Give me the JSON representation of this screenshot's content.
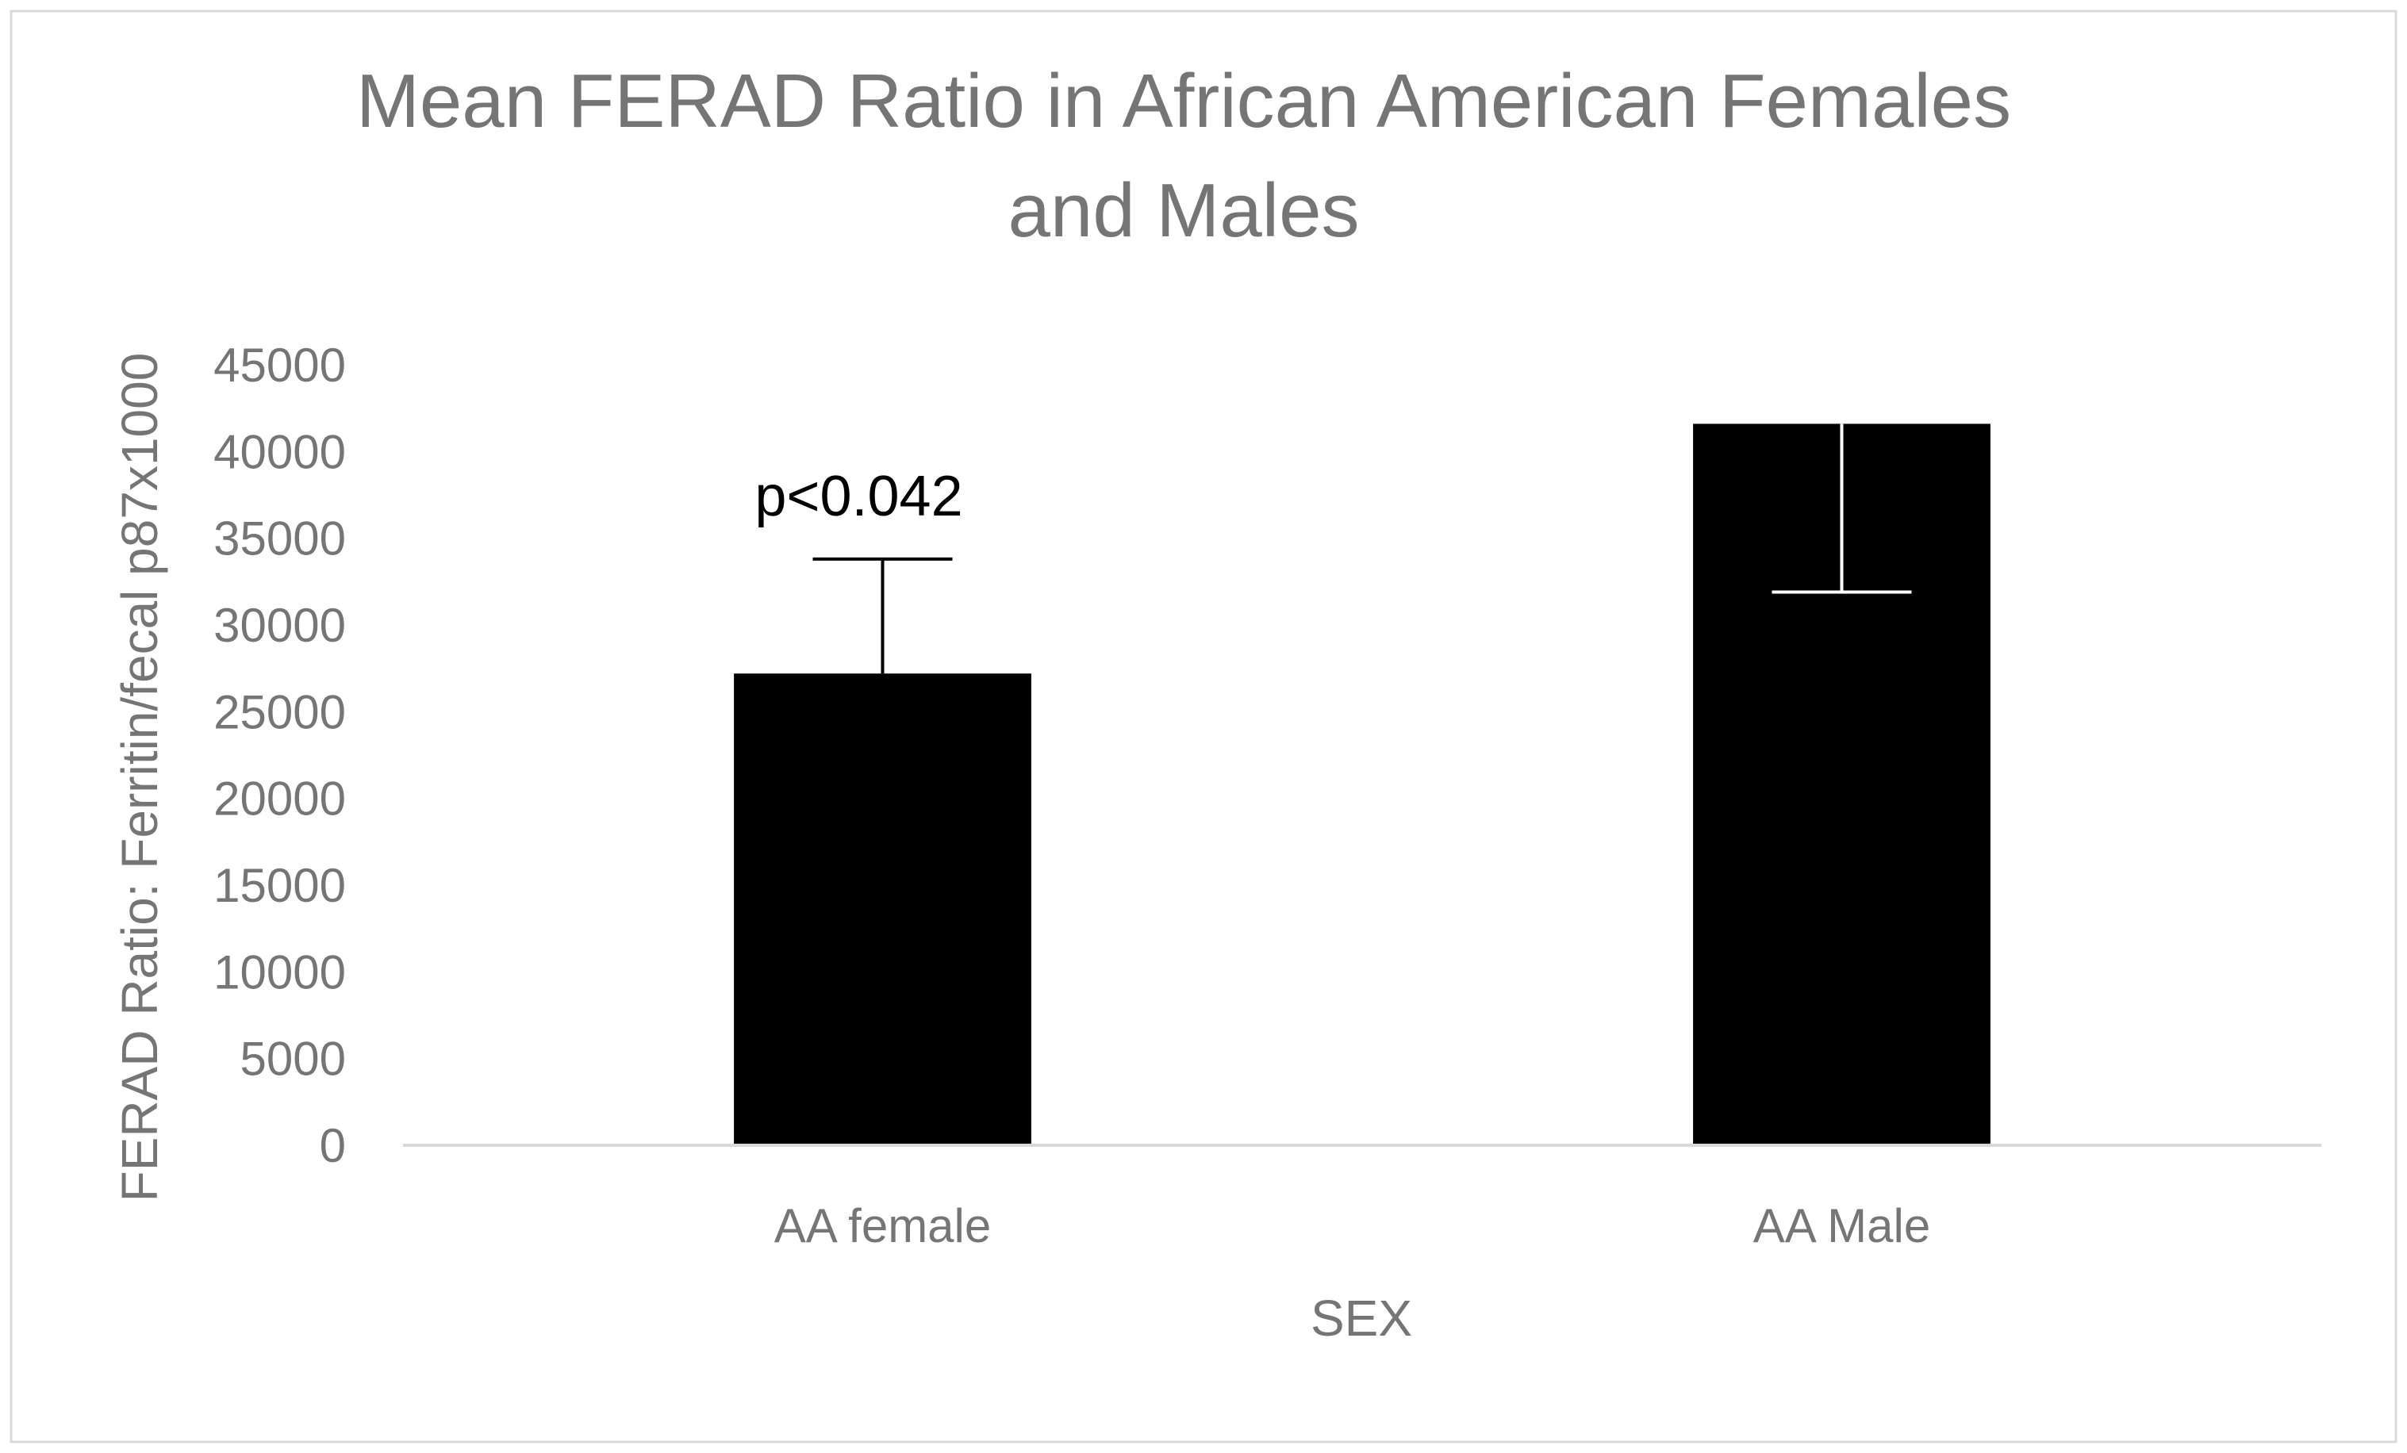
{
  "chart_data": {
    "type": "bar",
    "title_lines": [
      "Mean FERAD Ratio in African American Females",
      "and Males"
    ],
    "xlabel": "SEX",
    "ylabel": "FERAD Ratio: Ferritin/fecal p87x1000",
    "categories": [
      "AA female",
      "AA Male"
    ],
    "values": [
      27200,
      41600
    ],
    "error_bars": [
      {
        "category": "AA female",
        "direction": "up",
        "value": 6600,
        "color": "#000000"
      },
      {
        "category": "AA Male",
        "direction": "down",
        "value": 9700,
        "color": "#ffffff"
      }
    ],
    "ylim": [
      0,
      45000
    ],
    "yticks": [
      0,
      5000,
      10000,
      15000,
      20000,
      25000,
      30000,
      35000,
      40000,
      45000
    ],
    "grid": false,
    "bar_color": "#000000",
    "annotations": [
      {
        "text": "p<0.042",
        "category": "AA female",
        "y": 36300
      }
    ]
  }
}
